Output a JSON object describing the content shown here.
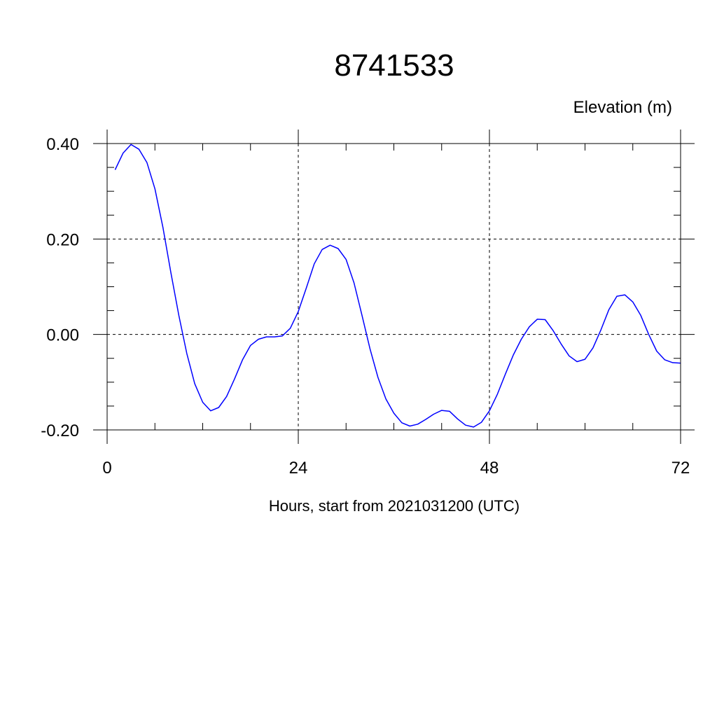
{
  "chart_data": {
    "type": "line",
    "title": "8741533",
    "ylabel": "Elevation (m)",
    "xlabel": "Hours, start from 2021031200 (UTC)",
    "xlim": [
      0,
      72
    ],
    "ylim": [
      -0.2,
      0.4
    ],
    "x_ticks": [
      {
        "value": 0,
        "label": "0"
      },
      {
        "value": 24,
        "label": "24"
      },
      {
        "value": 48,
        "label": "48"
      },
      {
        "value": 72,
        "label": "72"
      }
    ],
    "y_ticks": [
      {
        "value": 0.4,
        "label": "0.40"
      },
      {
        "value": 0.2,
        "label": "0.20"
      },
      {
        "value": 0.0,
        "label": "0.00"
      },
      {
        "value": -0.2,
        "label": "-0.20"
      }
    ],
    "grid": true,
    "series": [
      {
        "color": "#0000ff",
        "x": [
          1,
          2,
          3,
          4,
          5,
          6,
          7,
          8,
          9,
          10,
          11,
          12,
          13,
          14,
          15,
          16,
          17,
          18,
          19,
          20,
          21,
          22,
          23,
          24,
          25,
          26,
          27,
          28,
          29,
          30,
          31,
          32,
          33,
          34,
          35,
          36,
          37,
          38,
          39,
          40,
          41,
          42,
          43,
          44,
          45,
          46,
          47,
          48,
          49,
          50,
          51,
          52,
          53,
          54,
          55,
          56,
          57,
          58,
          59,
          60,
          61,
          62,
          63,
          64,
          65,
          66,
          67,
          68,
          69,
          70,
          71,
          72
        ],
        "y": [
          0.345,
          0.38,
          0.398,
          0.388,
          0.36,
          0.305,
          0.225,
          0.13,
          0.04,
          -0.04,
          -0.103,
          -0.142,
          -0.16,
          -0.153,
          -0.13,
          -0.093,
          -0.053,
          -0.023,
          -0.01,
          -0.005,
          -0.005,
          -0.003,
          0.013,
          0.048,
          0.097,
          0.148,
          0.178,
          0.187,
          0.18,
          0.157,
          0.108,
          0.04,
          -0.03,
          -0.09,
          -0.135,
          -0.165,
          -0.185,
          -0.192,
          -0.188,
          -0.178,
          -0.167,
          -0.159,
          -0.161,
          -0.177,
          -0.19,
          -0.194,
          -0.184,
          -0.16,
          -0.125,
          -0.083,
          -0.043,
          -0.01,
          0.016,
          0.032,
          0.031,
          0.008,
          -0.02,
          -0.045,
          -0.057,
          -0.052,
          -0.028,
          0.01,
          0.052,
          0.08,
          0.083,
          0.068,
          0.04,
          0.0,
          -0.035,
          -0.053,
          -0.059,
          -0.06
        ]
      }
    ]
  }
}
